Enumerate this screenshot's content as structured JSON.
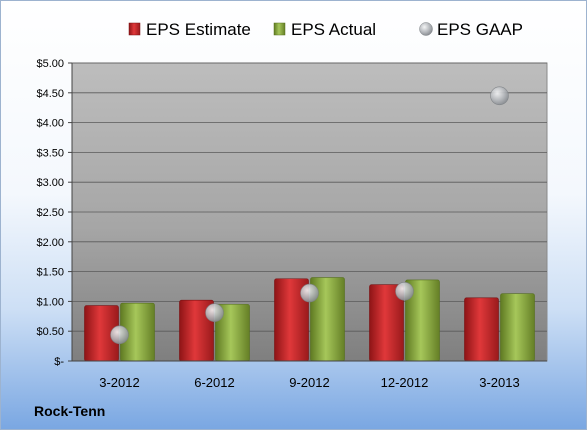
{
  "chart_data": {
    "type": "bar",
    "categories": [
      "3-2012",
      "6-2012",
      "9-2012",
      "12-2012",
      "3-2013"
    ],
    "series": [
      {
        "name": "EPS Estimate",
        "type": "bar",
        "color": "#c0262b",
        "values": [
          0.93,
          1.02,
          1.38,
          1.28,
          1.06
        ]
      },
      {
        "name": "EPS Actual",
        "type": "bar",
        "color": "#86a63a",
        "values": [
          0.97,
          0.95,
          1.4,
          1.36,
          1.13
        ]
      },
      {
        "name": "EPS GAAP",
        "type": "scatter",
        "color": "#b9bcc0",
        "values": [
          0.44,
          0.81,
          1.14,
          1.17,
          4.45
        ]
      }
    ],
    "y_ticks": [
      "$-",
      "$0.50",
      "$1.00",
      "$1.50",
      "$2.00",
      "$2.50",
      "$3.00",
      "$3.50",
      "$4.00",
      "$4.50",
      "$5.00"
    ],
    "ylim": [
      0,
      5
    ],
    "legend_position": "top",
    "grid": true
  },
  "footer": {
    "company": "Rock-Tenn"
  }
}
